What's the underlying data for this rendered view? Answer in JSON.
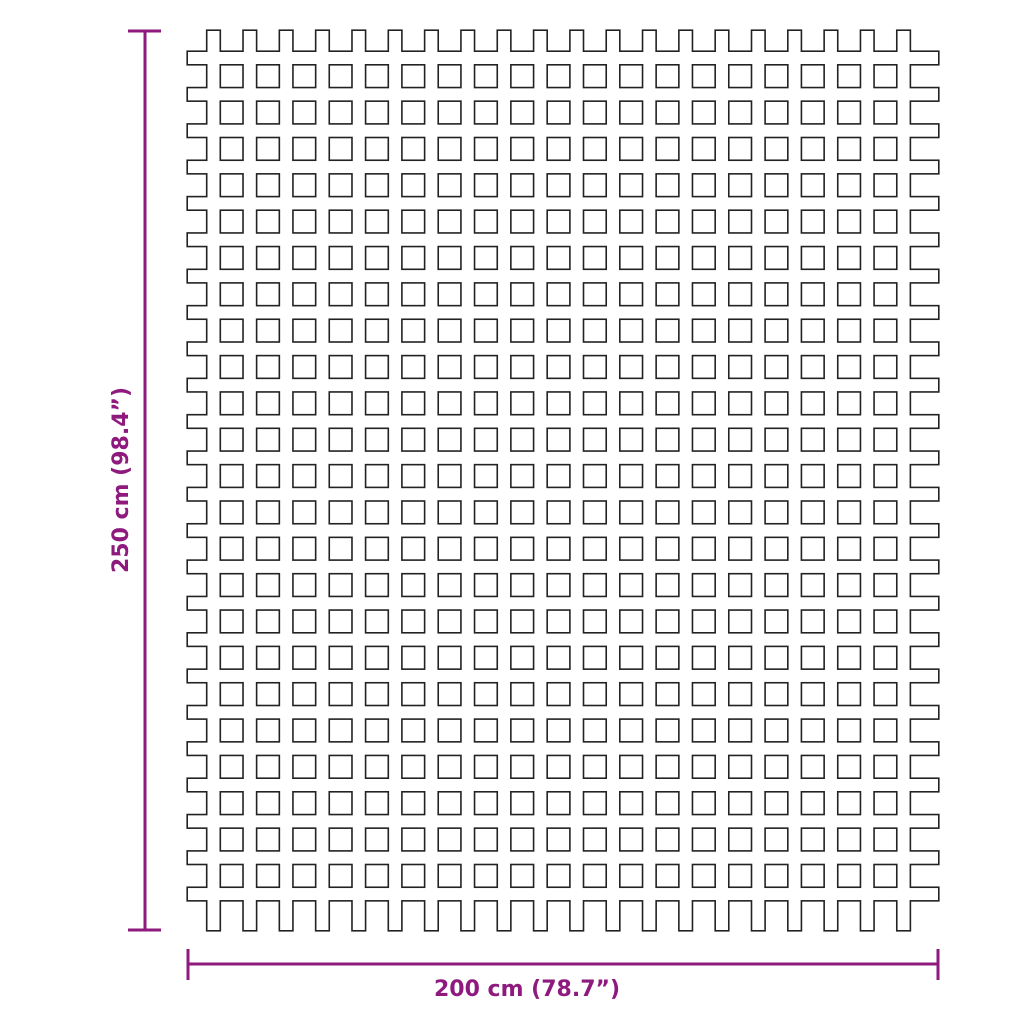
{
  "product": {
    "shape": "lattice-mat",
    "columns_of_openings": 19,
    "rows_of_openings": 23
  },
  "dimensions": {
    "height_label": "250 cm (98.4”)",
    "width_label": "200 cm (78.7”)",
    "color": "#8e1a7e"
  },
  "colors": {
    "outline": "#222222",
    "background": "#ffffff"
  }
}
